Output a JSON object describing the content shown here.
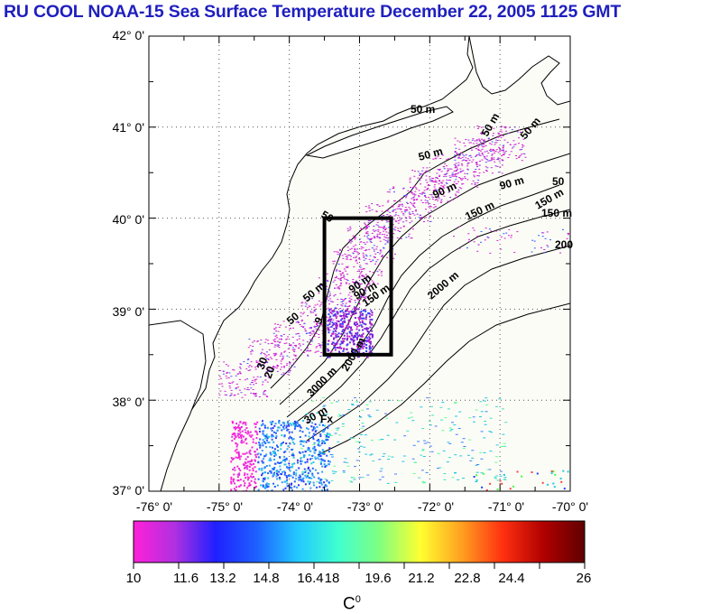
{
  "title": "RU COOL  NOAA-15 Sea Surface Temperature December 22, 2005 1125 GMT",
  "map": {
    "lat_ticks": [
      "42° 0'",
      "41° 0'",
      "40° 0'",
      "39° 0'",
      "38° 0'",
      "37° 0'"
    ],
    "lon_ticks": [
      "-76° 0'",
      "-75° 0'",
      "-74° 0'",
      "-73° 0'",
      "-72° 0'",
      "-71° 0'",
      "-70° 0'"
    ],
    "lat_range": [
      37,
      42
    ],
    "lon_range": [
      -76,
      -70
    ],
    "isobath_labels": [
      "50 m",
      "50 m",
      "50",
      "50 m",
      "50 m",
      "50",
      "50",
      "90 m",
      "90 m",
      "90 m",
      "150 m",
      "150 m",
      "150 m",
      "150 m",
      "200",
      "2000 m",
      "2000 m",
      "3000 m",
      "30",
      "30 m",
      "20",
      "90 m",
      "50 m",
      "9",
      "Fx"
    ],
    "study_box": {
      "lon_min": -73.5,
      "lon_max": -72.55,
      "lat_min": 38.5,
      "lat_max": 40.0
    },
    "land_color": "#ffffff",
    "ocean_color": "#fcfcf7"
  },
  "colorbar": {
    "min": 10,
    "max": 26,
    "tick_labels": [
      "10",
      "11.6",
      "13.2",
      "14.8",
      "16.4",
      "18",
      "19.6",
      "21.2",
      "22.8",
      "24.4",
      "26"
    ],
    "units_base": "C",
    "units_sup": "0",
    "colors": [
      "#ff20d8",
      "#b030e0",
      "#2020ff",
      "#1e60ff",
      "#22c8ff",
      "#40ffd0",
      "#80ff80",
      "#ffff30",
      "#ffa020",
      "#ff3010",
      "#b00000",
      "#600000"
    ]
  }
}
